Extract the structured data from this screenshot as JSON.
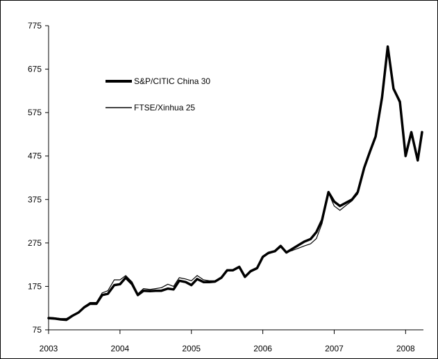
{
  "chart_data": {
    "type": "line",
    "title": "",
    "xlabel": "",
    "ylabel": "",
    "xlim": [
      2003.0,
      2008.23
    ],
    "ylim": [
      75,
      775
    ],
    "y_ticks": [
      75,
      175,
      275,
      375,
      475,
      575,
      675,
      775
    ],
    "x_ticks": [
      2003,
      2004,
      2005,
      2006,
      2007,
      2008
    ],
    "x_tick_labels": [
      "2003",
      "2004",
      "2005",
      "2006",
      "2007",
      "2008"
    ],
    "grid": false,
    "legend_position": "top-left",
    "series": [
      {
        "name": "S&P/CITIC China 30",
        "color": "#000000",
        "style": "thick",
        "x": [
          2003.0,
          2003.08,
          2003.17,
          2003.25,
          2003.33,
          2003.42,
          2003.5,
          2003.58,
          2003.67,
          2003.75,
          2003.83,
          2003.92,
          2004.0,
          2004.08,
          2004.17,
          2004.25,
          2004.33,
          2004.42,
          2004.5,
          2004.58,
          2004.67,
          2004.75,
          2004.83,
          2004.92,
          2005.0,
          2005.08,
          2005.17,
          2005.25,
          2005.33,
          2005.42,
          2005.5,
          2005.58,
          2005.67,
          2005.75,
          2005.83,
          2005.92,
          2006.0,
          2006.08,
          2006.17,
          2006.25,
          2006.33,
          2006.42,
          2006.5,
          2006.58,
          2006.67,
          2006.75,
          2006.83,
          2006.92,
          2007.0,
          2007.08,
          2007.17,
          2007.25,
          2007.33,
          2007.42,
          2007.5,
          2007.58,
          2007.67,
          2007.75,
          2007.83,
          2007.92,
          2008.0,
          2008.08,
          2008.17,
          2008.23
        ],
        "y": [
          102,
          101,
          99,
          98,
          107,
          115,
          127,
          135,
          135,
          155,
          158,
          178,
          180,
          195,
          180,
          155,
          165,
          164,
          165,
          165,
          170,
          168,
          188,
          185,
          178,
          192,
          185,
          185,
          186,
          195,
          212,
          212,
          220,
          197,
          210,
          217,
          243,
          252,
          256,
          268,
          253,
          262,
          270,
          278,
          284,
          300,
          328,
          392,
          370,
          360,
          368,
          375,
          392,
          448,
          485,
          520,
          610,
          727,
          630,
          600,
          475,
          530,
          465,
          530
        ]
      },
      {
        "name": "FTSE/Xinhua 25",
        "color": "#000000",
        "style": "thin",
        "x": [
          2003.0,
          2003.08,
          2003.17,
          2003.25,
          2003.33,
          2003.42,
          2003.5,
          2003.58,
          2003.67,
          2003.75,
          2003.83,
          2003.92,
          2004.0,
          2004.08,
          2004.17,
          2004.25,
          2004.33,
          2004.42,
          2004.5,
          2004.58,
          2004.67,
          2004.75,
          2004.83,
          2004.92,
          2005.0,
          2005.08,
          2005.17,
          2005.25,
          2005.33,
          2005.42,
          2005.5,
          2005.58,
          2005.67,
          2005.75,
          2005.83,
          2005.92,
          2006.0,
          2006.08,
          2006.17,
          2006.25,
          2006.33,
          2006.42,
          2006.5,
          2006.58,
          2006.67,
          2006.75,
          2006.83,
          2006.92,
          2007.0,
          2007.08,
          2007.17,
          2007.25,
          2007.33,
          2007.42,
          2007.5,
          2007.58,
          2007.67,
          2007.75,
          2007.83,
          2007.92,
          2008.0,
          2008.08,
          2008.17,
          2008.23
        ],
        "y": [
          104,
          103,
          101,
          101,
          108,
          116,
          129,
          138,
          138,
          160,
          165,
          190,
          190,
          200,
          185,
          158,
          170,
          168,
          170,
          172,
          180,
          175,
          195,
          192,
          188,
          200,
          190,
          188,
          188,
          195,
          210,
          212,
          218,
          200,
          208,
          215,
          243,
          250,
          255,
          265,
          253,
          258,
          263,
          268,
          273,
          285,
          320,
          390,
          360,
          350,
          362,
          372,
          388,
          445,
          482,
          515,
          605,
          725,
          628,
          595,
          478,
          528,
          468,
          528
        ]
      }
    ]
  }
}
